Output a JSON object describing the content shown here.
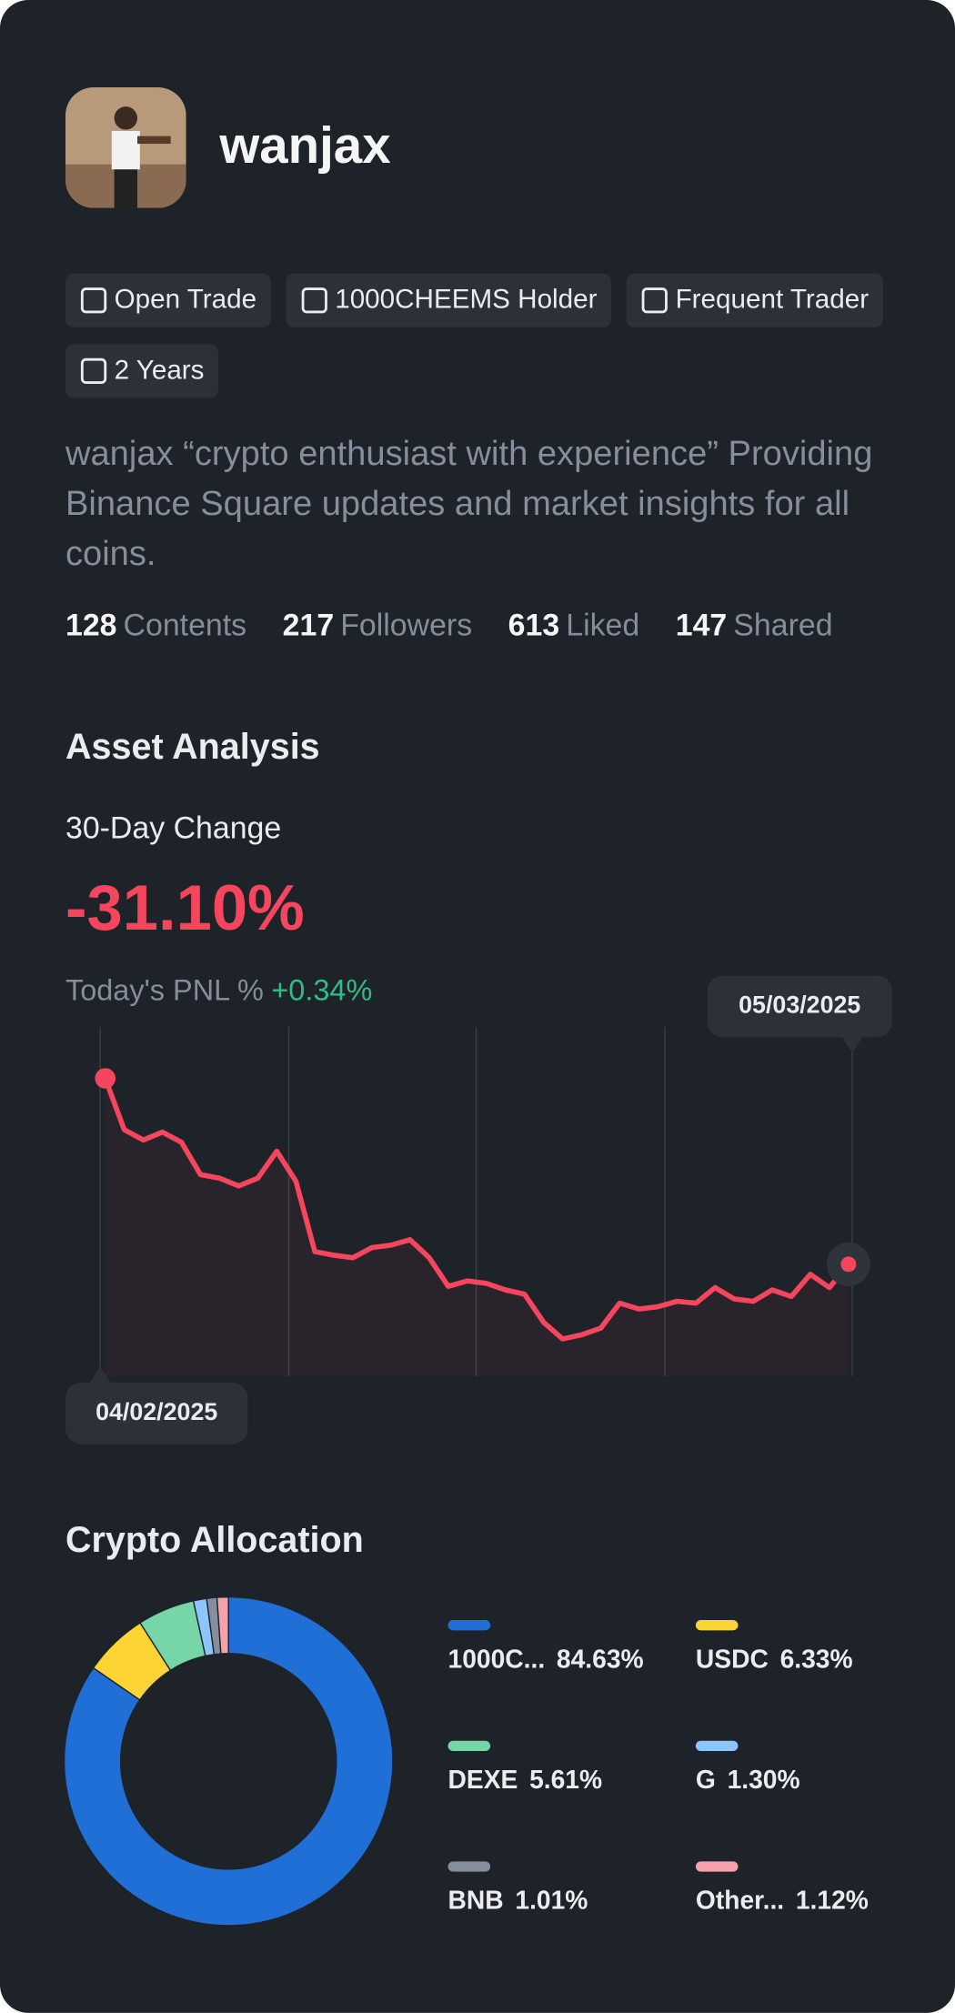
{
  "profile": {
    "username": "wanjax",
    "badges": [
      "Open Trade",
      "1000CHEEMS Holder",
      "Frequent Trader",
      "2 Years"
    ],
    "bio": "wanjax “crypto enthusiast with experience” Providing Binance Square updates and market insights for all coins.",
    "stats": [
      {
        "value": 128,
        "label": "Contents"
      },
      {
        "value": 217,
        "label": "Followers"
      },
      {
        "value": 613,
        "label": "Liked"
      },
      {
        "value": 147,
        "label": "Shared"
      }
    ]
  },
  "asset_analysis": {
    "title": "Asset Analysis",
    "change_label": "30-Day Change",
    "change_value": "-31.10%",
    "pnl_label": "Today's PNL %",
    "pnl_value": "+0.34%",
    "chart": {
      "type": "line",
      "date_range": [
        "04/02/2025",
        "05/03/2025"
      ],
      "color": "#f6465d",
      "values": [
        0,
        -8.6,
        -10.3,
        -9.0,
        -10.7,
        -16.1,
        -16.7,
        -18.0,
        -16.7,
        -12.2,
        -17.2,
        -29.0,
        -29.6,
        -30.0,
        -28.3,
        -27.9,
        -27.0,
        -30.0,
        -34.8,
        -33.9,
        -34.3,
        -35.4,
        -36.1,
        -40.8,
        -43.6,
        -42.9,
        -41.8,
        -37.6,
        -38.6,
        -38.2,
        -37.3,
        -37.6,
        -35.0,
        -36.9,
        -37.3,
        -35.4,
        -36.5,
        -32.8,
        -35.0,
        -31.1
      ]
    }
  },
  "crypto_allocation": {
    "title": "Crypto Allocation",
    "chart": {
      "type": "pie",
      "categories": [
        "1000C...",
        "USDC",
        "DEXE",
        "G",
        "BNB",
        "Other..."
      ],
      "values": [
        84.63,
        6.33,
        5.61,
        1.3,
        1.01,
        1.12
      ],
      "value_labels": [
        "84.63%",
        "6.33%",
        "5.61%",
        "1.30%",
        "1.01%",
        "1.12%"
      ],
      "colors": [
        "#1f6fd6",
        "#fcd535",
        "#76d6a8",
        "#8ec5ff",
        "#848e9c",
        "#f7a1aa"
      ]
    }
  }
}
